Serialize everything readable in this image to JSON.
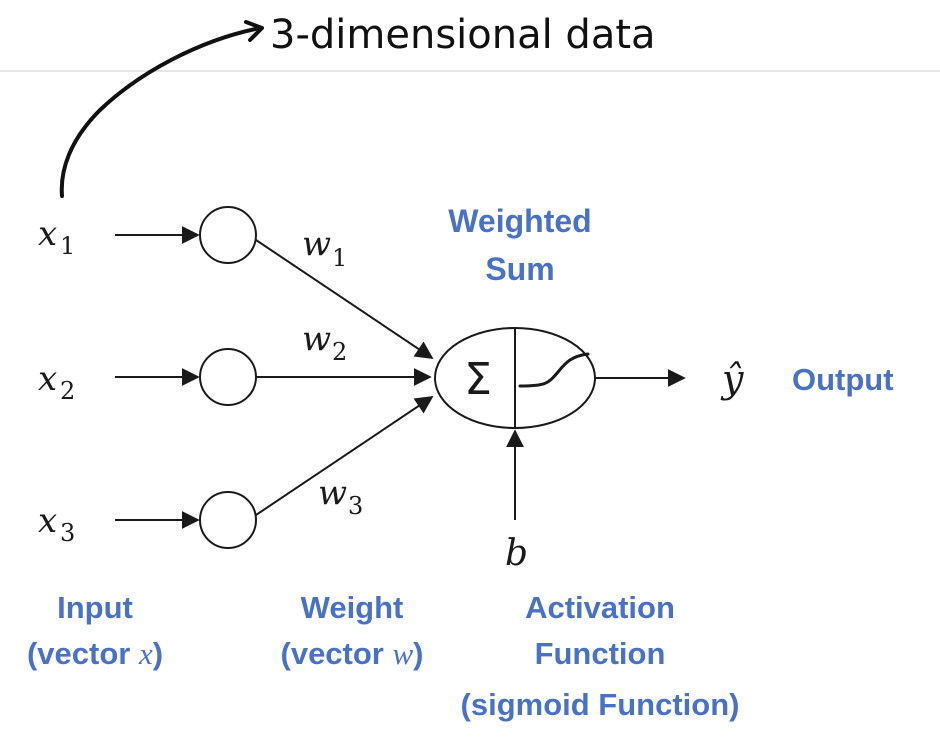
{
  "annotation": {
    "handwritten_note": "3-dimensional data",
    "arrow_symbol": "↗"
  },
  "inputs": [
    {
      "symbol": "x",
      "subscript": "1"
    },
    {
      "symbol": "x",
      "subscript": "2"
    },
    {
      "symbol": "x",
      "subscript": "3"
    }
  ],
  "weights": [
    {
      "symbol": "w",
      "subscript": "1"
    },
    {
      "symbol": "w",
      "subscript": "2"
    },
    {
      "symbol": "w",
      "subscript": "3"
    }
  ],
  "neuron": {
    "sum_symbol": "Σ",
    "bias_symbol": "b",
    "output_symbol": "ŷ"
  },
  "labels": {
    "weighted_sum_line1": "Weighted",
    "weighted_sum_line2": "Sum",
    "output": "Output",
    "input_line1": "Input",
    "input_line2_prefix": "(vector ",
    "input_line2_var": "x",
    "input_line2_suffix": ")",
    "weight_line1": "Weight",
    "weight_line2_prefix": "(vector ",
    "weight_line2_var": "w",
    "weight_line2_suffix": ")",
    "activation_line1": "Activation",
    "activation_line2": "Function",
    "activation_line3": "(sigmoid Function)"
  },
  "colors": {
    "label_blue": "#4a72c4",
    "ink": "#1a1a1a"
  }
}
